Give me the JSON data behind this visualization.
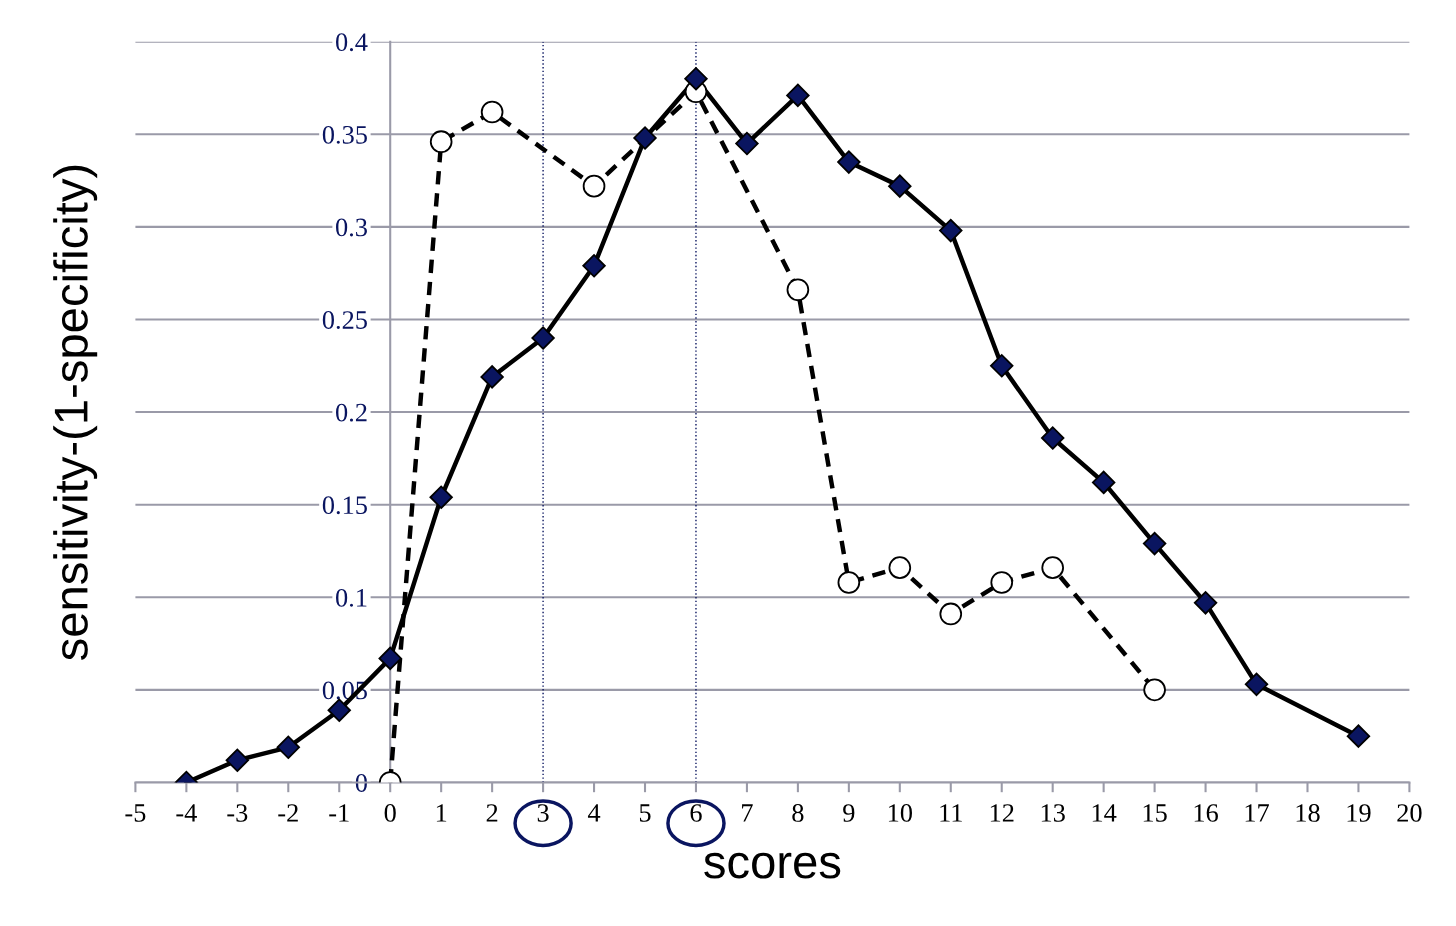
{
  "chart_data": {
    "type": "line",
    "xlabel": "scores",
    "ylabel": "sensitivity-(1-specificity)",
    "xlim": [
      -5,
      20
    ],
    "xticks": [
      -5,
      -4,
      -3,
      -2,
      -1,
      0,
      1,
      2,
      3,
      4,
      5,
      6,
      7,
      8,
      9,
      10,
      11,
      12,
      13,
      14,
      15,
      16,
      17,
      18,
      19,
      20
    ],
    "ylim": [
      0,
      0.4
    ],
    "yticks": [
      0,
      0.05,
      0.1,
      0.15,
      0.2,
      0.25,
      0.3,
      0.35,
      0.4
    ],
    "grid": "y",
    "series": [
      {
        "color": "#0a1560",
        "marker": "diamond",
        "line_style": "solid",
        "x": [
          -4,
          -3,
          -2,
          -1,
          0,
          1,
          2,
          3,
          4,
          5,
          6,
          7,
          8,
          9,
          10,
          11,
          12,
          13,
          14,
          15,
          16,
          17,
          19
        ],
        "values": [
          0,
          0.012,
          0.019,
          0.039,
          0.067,
          0.154,
          0.219,
          0.24,
          0.279,
          0.348,
          0.38,
          0.345,
          0.371,
          0.335,
          0.322,
          0.298,
          0.225,
          0.186,
          0.162,
          0.129,
          0.097,
          0.053,
          0.025
        ]
      },
      {
        "color": "#ffffff",
        "marker": "circle",
        "line_style": "dashed",
        "x": [
          0,
          1,
          2,
          4,
          6,
          8,
          9,
          10,
          11,
          12,
          13,
          15
        ],
        "values": [
          0,
          0.346,
          0.362,
          0.322,
          0.373,
          0.266,
          0.108,
          0.116,
          0.091,
          0.108,
          0.116,
          0.05
        ]
      }
    ],
    "ref_lines": [
      {
        "axis": "x",
        "value": 3,
        "color": "#0a1560",
        "line_style": "dotted"
      },
      {
        "axis": "x",
        "value": 6,
        "color": "#0a1560",
        "line_style": "dotted"
      }
    ]
  }
}
